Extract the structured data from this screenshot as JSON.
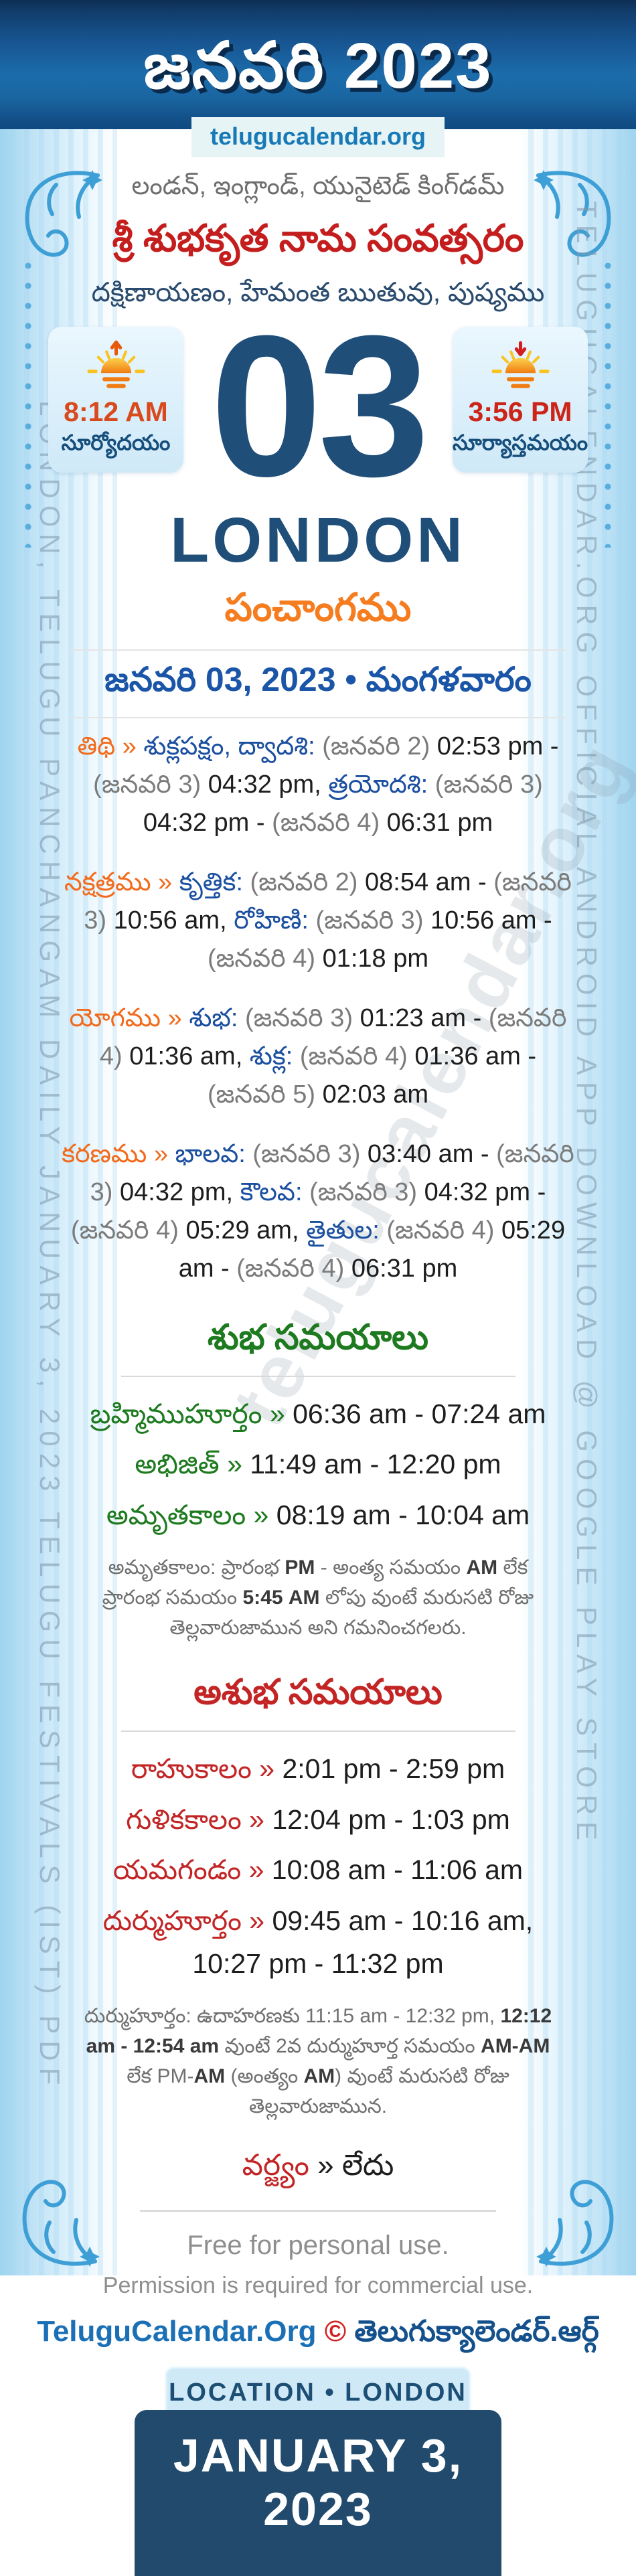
{
  "header": {
    "title": "జనవరి 2023",
    "site": "telugucalendar.org"
  },
  "intro": {
    "location_line": "లండన్, ఇంగ్లాండ్, యునైటెడ్ కింగ్‌డమ్",
    "samvatsaram_line": "శ్రీ శుభకృత నామ సంవత్సరం",
    "ayana_line": "దక్షిణాయణం, హేమంత ఋతువు, పుష్యము"
  },
  "day": {
    "number": "03",
    "city": "LONDON",
    "sunrise": {
      "time": "8:12 AM",
      "label": "సూర్యోదయం"
    },
    "sunset": {
      "time": "3:56 PM",
      "label": "సూర్యాస్తమయం"
    }
  },
  "icons": {
    "sunrise": "sunrise-sun-up-arrow-icon",
    "sunset": "sunset-sun-down-arrow-icon",
    "corner": "floral-corner-ornament-icon"
  },
  "panchangam": {
    "heading": "పంచాంగము",
    "date_line": "జనవరి 03, 2023 • మంగళవారం",
    "lines": {
      "tithi": [
        {
          "t": "తిథి » ",
          "c": "label"
        },
        {
          "t": "శుక్లపక్షం, ద్వాదశి: ",
          "c": "name"
        },
        {
          "t": "(జనవరి 2) ",
          "c": "muted"
        },
        {
          "t": "02:53 pm",
          "c": "time"
        },
        {
          "t": " - ",
          "c": "time"
        },
        {
          "t": "(జనవరి 3) ",
          "c": "muted"
        },
        {
          "t": "04:32 pm, ",
          "c": "time"
        },
        {
          "t": "త్రయోదశి: ",
          "c": "name"
        },
        {
          "t": "(జనవరి 3) ",
          "c": "muted"
        },
        {
          "t": "04:32 pm",
          "c": "time"
        },
        {
          "t": " - ",
          "c": "time"
        },
        {
          "t": "(జనవరి 4) ",
          "c": "muted"
        },
        {
          "t": "06:31 pm",
          "c": "time"
        }
      ],
      "nakshatram": [
        {
          "t": "నక్షత్రము » ",
          "c": "label"
        },
        {
          "t": "కృత్తిక: ",
          "c": "name"
        },
        {
          "t": "(జనవరి 2) ",
          "c": "muted"
        },
        {
          "t": "08:54 am",
          "c": "time"
        },
        {
          "t": " - ",
          "c": "time"
        },
        {
          "t": "(జనవరి 3) ",
          "c": "muted"
        },
        {
          "t": "10:56 am, ",
          "c": "time"
        },
        {
          "t": "రోహిణి: ",
          "c": "name"
        },
        {
          "t": "(జనవరి 3) ",
          "c": "muted"
        },
        {
          "t": "10:56 am",
          "c": "time"
        },
        {
          "t": " - ",
          "c": "time"
        },
        {
          "t": "(జనవరి 4) ",
          "c": "muted"
        },
        {
          "t": "01:18 pm",
          "c": "time"
        }
      ],
      "yogam": [
        {
          "t": "యోగము » ",
          "c": "label"
        },
        {
          "t": "శుభ: ",
          "c": "name"
        },
        {
          "t": "(జనవరి 3) ",
          "c": "muted"
        },
        {
          "t": "01:23 am",
          "c": "time"
        },
        {
          "t": " - ",
          "c": "time"
        },
        {
          "t": "(జనవరి 4) ",
          "c": "muted"
        },
        {
          "t": "01:36 am, ",
          "c": "time"
        },
        {
          "t": "శుక్ల: ",
          "c": "name"
        },
        {
          "t": "(జనవరి 4) ",
          "c": "muted"
        },
        {
          "t": "01:36 am",
          "c": "time"
        },
        {
          "t": " - ",
          "c": "time"
        },
        {
          "t": "(జనవరి 5) ",
          "c": "muted"
        },
        {
          "t": "02:03 am",
          "c": "time"
        }
      ],
      "karanam": [
        {
          "t": "కరణము » ",
          "c": "label"
        },
        {
          "t": "భాలవ: ",
          "c": "name"
        },
        {
          "t": "(జనవరి 3) ",
          "c": "muted"
        },
        {
          "t": "03:40 am",
          "c": "time"
        },
        {
          "t": " - ",
          "c": "time"
        },
        {
          "t": "(జనవరి 3) ",
          "c": "muted"
        },
        {
          "t": "04:32 pm, ",
          "c": "time"
        },
        {
          "t": "కౌలవ: ",
          "c": "name"
        },
        {
          "t": "(జనవరి 3) ",
          "c": "muted"
        },
        {
          "t": "04:32 pm",
          "c": "time"
        },
        {
          "t": " - ",
          "c": "time"
        },
        {
          "t": "(జనవరి 4) ",
          "c": "muted"
        },
        {
          "t": "05:29 am, ",
          "c": "time"
        },
        {
          "t": "తైతుల: ",
          "c": "name"
        },
        {
          "t": "(జనవరి 4) ",
          "c": "muted"
        },
        {
          "t": "05:29 am",
          "c": "time"
        },
        {
          "t": " - ",
          "c": "time"
        },
        {
          "t": "(జనవరి 4) ",
          "c": "muted"
        },
        {
          "t": "06:31 pm",
          "c": "time"
        }
      ]
    }
  },
  "shubha": {
    "heading": "శుభ సమయాలు",
    "items": {
      "brahmi": [
        {
          "t": "బ్రహ్మిముహూర్తం » ",
          "c": "good"
        },
        {
          "t": "06:36 am - 07:24 am",
          "c": "time"
        }
      ],
      "abhijit": [
        {
          "t": "అభిజిత్ » ",
          "c": "good"
        },
        {
          "t": "11:49 am - 12:20 pm",
          "c": "time"
        }
      ],
      "amruta": [
        {
          "t": "అమృతకాలం » ",
          "c": "good"
        },
        {
          "t": "08:19 am - 10:04 am",
          "c": "time"
        }
      ]
    },
    "note": [
      {
        "t": "అమృతకాలం: ప్రారంభ ",
        "c": "note"
      },
      {
        "t": "PM",
        "c": "note-bold"
      },
      {
        "t": " - అంత్య సమయం ",
        "c": "note"
      },
      {
        "t": "AM",
        "c": "note-bold"
      },
      {
        "t": " లేక ప్రారంభ సమయం ",
        "c": "note"
      },
      {
        "t": "5:45 AM",
        "c": "note-bold"
      },
      {
        "t": " లోపు వుంటే మరుసటి రోజు తెల్లవారుజామున అని గమనించగలరు.",
        "c": "note"
      }
    ]
  },
  "ashubha": {
    "heading": "అశుభ సమయాలు",
    "items": {
      "rahu": [
        {
          "t": "రాహుకాలం » ",
          "c": "bad"
        },
        {
          "t": "2:01 pm - 2:59 pm",
          "c": "time"
        }
      ],
      "gulika": [
        {
          "t": "గుళికకాలం » ",
          "c": "bad"
        },
        {
          "t": "12:04 pm - 1:03 pm",
          "c": "time"
        }
      ],
      "yamaganda": [
        {
          "t": "యమగండం » ",
          "c": "bad"
        },
        {
          "t": "10:08 am - 11:06 am",
          "c": "time"
        }
      ],
      "durmuhurtham": [
        {
          "t": "దుర్ముహూర్తం » ",
          "c": "bad"
        },
        {
          "t": "09:45 am - 10:16 am,",
          "c": "time"
        },
        {
          "t": "",
          "c": "br"
        },
        {
          "t": "10:27 pm - 11:32 pm",
          "c": "time"
        }
      ]
    },
    "note": [
      {
        "t": "దుర్ముహూర్తం: ఉదాహరణకు 11:15 am - 12:32 pm, ",
        "c": "note"
      },
      {
        "t": "12:12 am - 12:54 am",
        "c": "note-bold"
      },
      {
        "t": " వుంటే 2వ దుర్ముహూర్త సమయం ",
        "c": "note"
      },
      {
        "t": "AM-AM",
        "c": "note-bold"
      },
      {
        "t": " లేక PM-",
        "c": "note"
      },
      {
        "t": "AM",
        "c": "note-bold"
      },
      {
        "t": " (అంత్యం ",
        "c": "note"
      },
      {
        "t": "AM",
        "c": "note-bold"
      },
      {
        "t": ") వుంటే మరుసటి రోజు తెల్లవారుజామున.",
        "c": "note"
      }
    ],
    "varjyam": [
      {
        "t": "వర్జ్యం",
        "c": "bad"
      },
      {
        "t": " » ",
        "c": "plain"
      },
      {
        "t": "లేదు",
        "c": "time"
      }
    ]
  },
  "footer": {
    "free_line": "Free for personal use.",
    "permission_line": "Permission is required for commercial use.",
    "brand": [
      {
        "t": "TeluguCalendar.Org ",
        "c": "brand-en"
      },
      {
        "t": "©",
        "c": "brand-c"
      },
      {
        "t": " తెలుగుక్యాలెండర్.ఆర్గ్",
        "c": "brand-te"
      }
    ],
    "location_badge": "LOCATION • LONDON",
    "date_badge": "JANUARY 3, 2023"
  },
  "watermarks": {
    "left": "LONDON, TELUGU PANCHANGAM DAILY JANUARY 3, 2023 TELUGU FESTIVALS (IST) PDF",
    "right": "TELUGUCALENDAR.ORG OFFICIAL ANDROID APP DOWNLOAD @ GOOGLE PLAY STORE",
    "diagonal": "telugucalendar.org"
  },
  "colors": {
    "accent_orange": "#f26b1c",
    "accent_blue": "#1b4fa0",
    "good_green": "#1e7a1f",
    "bad_red": "#c22525",
    "navy": "#1f4e79",
    "header_blue": "#1c6cab"
  }
}
